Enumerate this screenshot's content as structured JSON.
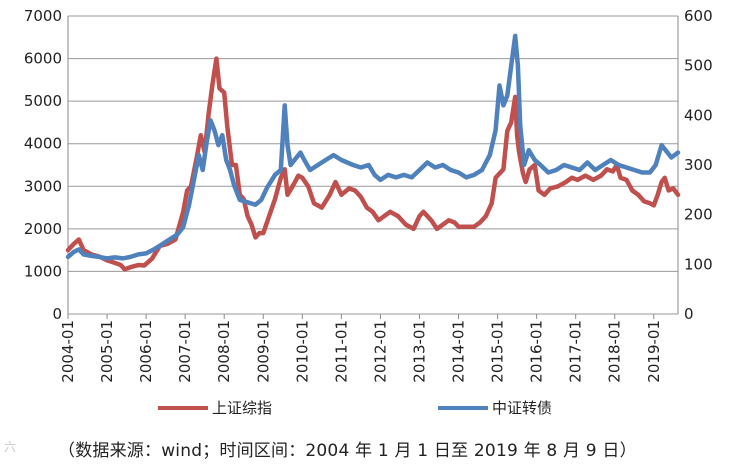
{
  "watermark": "六",
  "source_note": "（数据来源：wind；时间区间：2004 年 1 月 1 日至 2019 年 8 月 9 日）",
  "chart_data": {
    "type": "line",
    "x_ticks": [
      "2004-01",
      "2005-01",
      "2006-01",
      "2007-01",
      "2008-01",
      "2009-01",
      "2010-01",
      "2011-01",
      "2012-01",
      "2013-01",
      "2014-01",
      "2015-01",
      "2016-01",
      "2017-01",
      "2018-01",
      "2019-01"
    ],
    "x_range": [
      2004.0,
      2019.62
    ],
    "y_left": {
      "min": 0,
      "max": 7000,
      "ticks": [
        "0",
        "1000",
        "2000",
        "3000",
        "4000",
        "5000",
        "6000",
        "7000"
      ]
    },
    "y_right": {
      "min": 0,
      "max": 600,
      "ticks": [
        "0",
        "100",
        "200",
        "300",
        "400",
        "500",
        "600"
      ]
    },
    "grid": "horizontal",
    "legend_position": "bottom",
    "series": [
      {
        "name": "上证综指",
        "axis": "left",
        "color": "#c0504d",
        "points": [
          [
            2004.0,
            1500
          ],
          [
            2004.15,
            1650
          ],
          [
            2004.28,
            1750
          ],
          [
            2004.4,
            1500
          ],
          [
            2004.6,
            1400
          ],
          [
            2004.8,
            1350
          ],
          [
            2005.0,
            1260
          ],
          [
            2005.2,
            1200
          ],
          [
            2005.35,
            1150
          ],
          [
            2005.45,
            1050
          ],
          [
            2005.6,
            1100
          ],
          [
            2005.8,
            1150
          ],
          [
            2005.95,
            1140
          ],
          [
            2006.15,
            1300
          ],
          [
            2006.35,
            1600
          ],
          [
            2006.55,
            1650
          ],
          [
            2006.75,
            1750
          ],
          [
            2006.95,
            2400
          ],
          [
            2007.05,
            2900
          ],
          [
            2007.15,
            3000
          ],
          [
            2007.3,
            3700
          ],
          [
            2007.4,
            4200
          ],
          [
            2007.5,
            3800
          ],
          [
            2007.6,
            4700
          ],
          [
            2007.7,
            5400
          ],
          [
            2007.8,
            6000
          ],
          [
            2007.88,
            5300
          ],
          [
            2008.0,
            5200
          ],
          [
            2008.08,
            4400
          ],
          [
            2008.2,
            3500
          ],
          [
            2008.3,
            3500
          ],
          [
            2008.4,
            2800
          ],
          [
            2008.5,
            2700
          ],
          [
            2008.6,
            2300
          ],
          [
            2008.7,
            2100
          ],
          [
            2008.8,
            1800
          ],
          [
            2008.9,
            1900
          ],
          [
            2009.0,
            1900
          ],
          [
            2009.15,
            2300
          ],
          [
            2009.3,
            2700
          ],
          [
            2009.45,
            3200
          ],
          [
            2009.55,
            3400
          ],
          [
            2009.62,
            2800
          ],
          [
            2009.75,
            3000
          ],
          [
            2009.9,
            3250
          ],
          [
            2010.0,
            3200
          ],
          [
            2010.15,
            3000
          ],
          [
            2010.3,
            2600
          ],
          [
            2010.5,
            2500
          ],
          [
            2010.7,
            2800
          ],
          [
            2010.85,
            3100
          ],
          [
            2011.0,
            2800
          ],
          [
            2011.2,
            2950
          ],
          [
            2011.35,
            2900
          ],
          [
            2011.5,
            2750
          ],
          [
            2011.65,
            2500
          ],
          [
            2011.8,
            2400
          ],
          [
            2011.95,
            2200
          ],
          [
            2012.1,
            2300
          ],
          [
            2012.25,
            2400
          ],
          [
            2012.45,
            2300
          ],
          [
            2012.65,
            2100
          ],
          [
            2012.85,
            2000
          ],
          [
            2013.0,
            2300
          ],
          [
            2013.1,
            2400
          ],
          [
            2013.3,
            2200
          ],
          [
            2013.45,
            2000
          ],
          [
            2013.6,
            2100
          ],
          [
            2013.75,
            2200
          ],
          [
            2013.9,
            2150
          ],
          [
            2014.0,
            2050
          ],
          [
            2014.2,
            2050
          ],
          [
            2014.4,
            2050
          ],
          [
            2014.55,
            2150
          ],
          [
            2014.7,
            2300
          ],
          [
            2014.85,
            2600
          ],
          [
            2014.95,
            3200
          ],
          [
            2015.05,
            3300
          ],
          [
            2015.15,
            3400
          ],
          [
            2015.25,
            4300
          ],
          [
            2015.35,
            4500
          ],
          [
            2015.45,
            5100
          ],
          [
            2015.5,
            4200
          ],
          [
            2015.55,
            3800
          ],
          [
            2015.65,
            3300
          ],
          [
            2015.72,
            3100
          ],
          [
            2015.82,
            3400
          ],
          [
            2015.95,
            3500
          ],
          [
            2016.05,
            2900
          ],
          [
            2016.2,
            2800
          ],
          [
            2016.35,
            2950
          ],
          [
            2016.55,
            3000
          ],
          [
            2016.75,
            3100
          ],
          [
            2016.9,
            3200
          ],
          [
            2017.05,
            3150
          ],
          [
            2017.25,
            3250
          ],
          [
            2017.45,
            3150
          ],
          [
            2017.65,
            3250
          ],
          [
            2017.8,
            3400
          ],
          [
            2017.95,
            3350
          ],
          [
            2018.05,
            3500
          ],
          [
            2018.15,
            3200
          ],
          [
            2018.3,
            3150
          ],
          [
            2018.45,
            2900
          ],
          [
            2018.6,
            2800
          ],
          [
            2018.75,
            2650
          ],
          [
            2018.9,
            2600
          ],
          [
            2019.0,
            2550
          ],
          [
            2019.1,
            2800
          ],
          [
            2019.2,
            3100
          ],
          [
            2019.28,
            3200
          ],
          [
            2019.38,
            2900
          ],
          [
            2019.5,
            2950
          ],
          [
            2019.62,
            2800
          ]
        ]
      },
      {
        "name": "中证转债",
        "axis": "right",
        "color": "#4f81bd",
        "points": [
          [
            2004.0,
            115
          ],
          [
            2004.15,
            125
          ],
          [
            2004.28,
            130
          ],
          [
            2004.4,
            120
          ],
          [
            2004.6,
            117
          ],
          [
            2004.8,
            115
          ],
          [
            2005.0,
            112
          ],
          [
            2005.2,
            114
          ],
          [
            2005.4,
            112
          ],
          [
            2005.6,
            115
          ],
          [
            2005.8,
            120
          ],
          [
            2006.0,
            122
          ],
          [
            2006.2,
            130
          ],
          [
            2006.4,
            140
          ],
          [
            2006.6,
            150
          ],
          [
            2006.8,
            160
          ],
          [
            2006.95,
            175
          ],
          [
            2007.1,
            220
          ],
          [
            2007.25,
            280
          ],
          [
            2007.35,
            320
          ],
          [
            2007.45,
            290
          ],
          [
            2007.55,
            345
          ],
          [
            2007.65,
            390
          ],
          [
            2007.75,
            370
          ],
          [
            2007.85,
            340
          ],
          [
            2007.95,
            360
          ],
          [
            2008.05,
            310
          ],
          [
            2008.15,
            290
          ],
          [
            2008.25,
            260
          ],
          [
            2008.4,
            230
          ],
          [
            2008.6,
            225
          ],
          [
            2008.8,
            220
          ],
          [
            2008.95,
            230
          ],
          [
            2009.1,
            255
          ],
          [
            2009.3,
            280
          ],
          [
            2009.45,
            290
          ],
          [
            2009.55,
            420
          ],
          [
            2009.62,
            340
          ],
          [
            2009.7,
            300
          ],
          [
            2009.8,
            310
          ],
          [
            2009.95,
            325
          ],
          [
            2010.05,
            310
          ],
          [
            2010.2,
            290
          ],
          [
            2010.4,
            300
          ],
          [
            2010.6,
            310
          ],
          [
            2010.8,
            320
          ],
          [
            2011.0,
            310
          ],
          [
            2011.15,
            305
          ],
          [
            2011.3,
            300
          ],
          [
            2011.5,
            295
          ],
          [
            2011.7,
            300
          ],
          [
            2011.85,
            280
          ],
          [
            2012.0,
            270
          ],
          [
            2012.2,
            280
          ],
          [
            2012.4,
            275
          ],
          [
            2012.6,
            280
          ],
          [
            2012.8,
            275
          ],
          [
            2013.0,
            290
          ],
          [
            2013.2,
            305
          ],
          [
            2013.4,
            295
          ],
          [
            2013.6,
            300
          ],
          [
            2013.8,
            290
          ],
          [
            2014.0,
            285
          ],
          [
            2014.2,
            275
          ],
          [
            2014.4,
            280
          ],
          [
            2014.6,
            290
          ],
          [
            2014.8,
            320
          ],
          [
            2014.95,
            370
          ],
          [
            2015.05,
            460
          ],
          [
            2015.15,
            420
          ],
          [
            2015.25,
            440
          ],
          [
            2015.35,
            500
          ],
          [
            2015.45,
            560
          ],
          [
            2015.52,
            500
          ],
          [
            2015.58,
            380
          ],
          [
            2015.68,
            300
          ],
          [
            2015.8,
            330
          ],
          [
            2015.95,
            310
          ],
          [
            2016.1,
            300
          ],
          [
            2016.3,
            285
          ],
          [
            2016.5,
            290
          ],
          [
            2016.7,
            300
          ],
          [
            2016.9,
            295
          ],
          [
            2017.1,
            290
          ],
          [
            2017.3,
            305
          ],
          [
            2017.5,
            290
          ],
          [
            2017.7,
            300
          ],
          [
            2017.9,
            310
          ],
          [
            2018.1,
            300
          ],
          [
            2018.3,
            295
          ],
          [
            2018.5,
            290
          ],
          [
            2018.7,
            285
          ],
          [
            2018.9,
            285
          ],
          [
            2019.05,
            300
          ],
          [
            2019.2,
            340
          ],
          [
            2019.3,
            330
          ],
          [
            2019.45,
            315
          ],
          [
            2019.62,
            325
          ]
        ]
      }
    ]
  }
}
